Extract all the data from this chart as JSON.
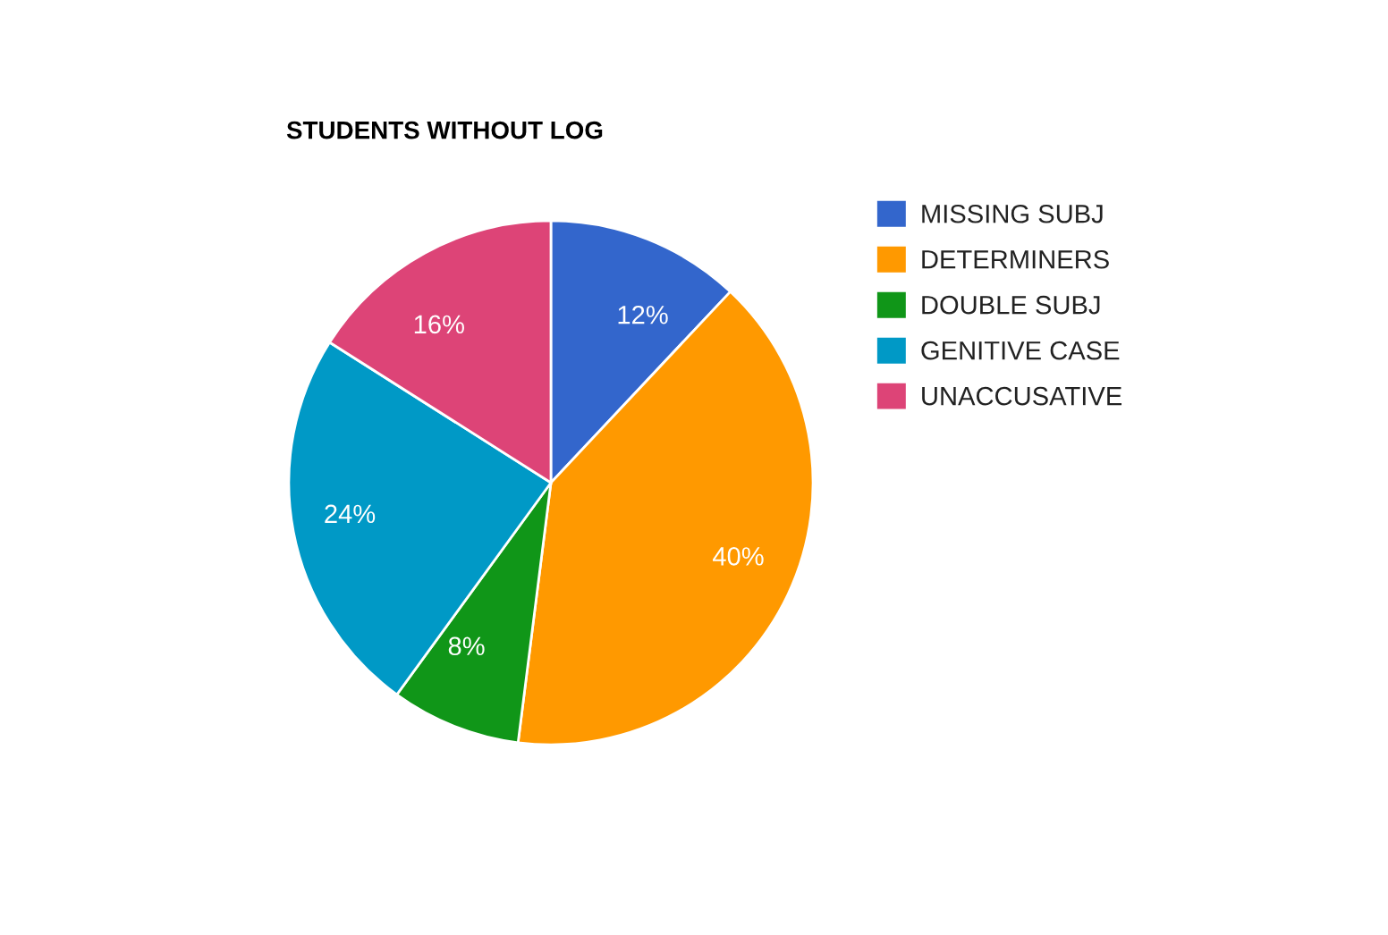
{
  "chart_data": {
    "type": "pie",
    "title": "STUDENTS WITHOUT LOG",
    "categories": [
      "MISSING SUBJ",
      "DETERMINERS",
      "DOUBLE SUBJ",
      "GENITIVE CASE",
      "UNACCUSATIVE"
    ],
    "values": [
      12,
      40,
      8,
      24,
      16
    ],
    "colors": [
      "#3366cc",
      "#ff9900",
      "#109618",
      "#0099c6",
      "#dd4477"
    ],
    "value_labels": [
      "12%",
      "40%",
      "8%",
      "24%",
      "16%"
    ],
    "legend": "right"
  }
}
